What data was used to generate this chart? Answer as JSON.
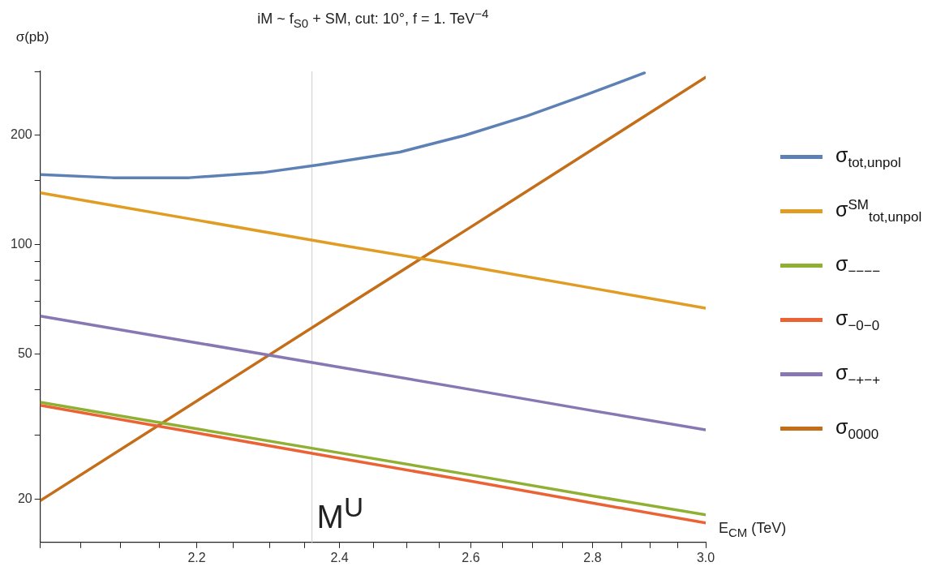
{
  "chart_data": {
    "type": "line",
    "title": "iM ~ f$_{S0}$ + SM,  cut: 10°,  f = 1. TeV$^{−4}$",
    "xlabel": "E$_{CM}$ (TeV)",
    "ylabel": "σ(pb)",
    "log": "xy",
    "grid": false,
    "legend": "right",
    "marker": "none",
    "line_style": "solid",
    "xlim": [
      2.0,
      3.0
    ],
    "ylim": [
      15.2,
      300
    ],
    "xticks": [
      {
        "value": 2.0,
        "label": null
      },
      {
        "value": 2.05,
        "label": null
      },
      {
        "value": 2.1,
        "label": null
      },
      {
        "value": 2.15,
        "label": null
      },
      2.2,
      {
        "value": 2.25,
        "label": null
      },
      {
        "value": 2.3,
        "label": null
      },
      {
        "value": 2.35,
        "label": null
      },
      2.4,
      {
        "value": 2.45,
        "label": null
      },
      {
        "value": 2.5,
        "label": null
      },
      {
        "value": 2.55,
        "label": null
      },
      2.6,
      {
        "value": 2.65,
        "label": null
      },
      {
        "value": 2.7,
        "label": null
      },
      {
        "value": 2.75,
        "label": null
      },
      2.8,
      {
        "value": 2.85,
        "label": null
      },
      {
        "value": 2.9,
        "label": null
      },
      {
        "value": 2.95,
        "label": null
      },
      {
        "value": 3.0,
        "label": "3.0"
      }
    ],
    "yticks": [
      20,
      {
        "value": 30,
        "label": null
      },
      {
        "value": 40,
        "label": null
      },
      50,
      {
        "value": 60,
        "label": null
      },
      {
        "value": 70,
        "label": null
      },
      {
        "value": 80,
        "label": null
      },
      {
        "value": 90,
        "label": null
      },
      100,
      {
        "value": 150,
        "label": null
      },
      200,
      {
        "value": 300,
        "label": null
      }
    ],
    "ref_lines": [
      {
        "axis": "x",
        "value": 2.36,
        "label": "M$^{U}$",
        "color": "#d4d4d4"
      }
    ],
    "series": [
      {
        "name": "σ$_{tot,unpol}$",
        "color": "#5e81b5",
        "x": [
          2.0,
          2.09,
          2.19,
          2.29,
          2.37,
          2.49,
          2.59,
          2.69,
          2.79,
          2.89
        ],
        "values": [
          156,
          153,
          153,
          158,
          166,
          180,
          200,
          226,
          259,
          297
        ]
      },
      {
        "name": "σ$^{SM}$$_{tot,unpol}$",
        "color": "#e19c24",
        "x": [
          2.0,
          2.2,
          2.4,
          2.6,
          2.8,
          3.0
        ],
        "values": [
          139,
          117,
          100,
          87,
          76,
          67
        ]
      },
      {
        "name": "σ$_{−−−−}$",
        "color": "#8fb032",
        "x": [
          2.0,
          2.2,
          2.4,
          2.6,
          2.8,
          3.0
        ],
        "values": [
          36.9,
          31.2,
          26.8,
          23.3,
          20.4,
          18.1
        ]
      },
      {
        "name": "σ$_{−0−0}$",
        "color": "#eb6235",
        "x": [
          2.0,
          2.2,
          2.4,
          2.6,
          2.8,
          3.0
        ],
        "values": [
          36.2,
          30.4,
          25.9,
          22.4,
          19.5,
          17.2
        ]
      },
      {
        "name": "σ$_{−+−+}$",
        "color": "#8778b3",
        "x": [
          2.0,
          2.2,
          2.4,
          2.6,
          2.8,
          3.0
        ],
        "values": [
          63.7,
          53.8,
          46.1,
          40.0,
          35.0,
          31.0
        ]
      },
      {
        "name": "σ$_{0000}$",
        "color": "#c56e1a",
        "x": [
          2.0,
          2.2,
          2.4,
          2.6,
          2.8,
          3.0
        ],
        "values": [
          19.8,
          37.2,
          66.1,
          112,
          183,
          289
        ]
      }
    ]
  }
}
